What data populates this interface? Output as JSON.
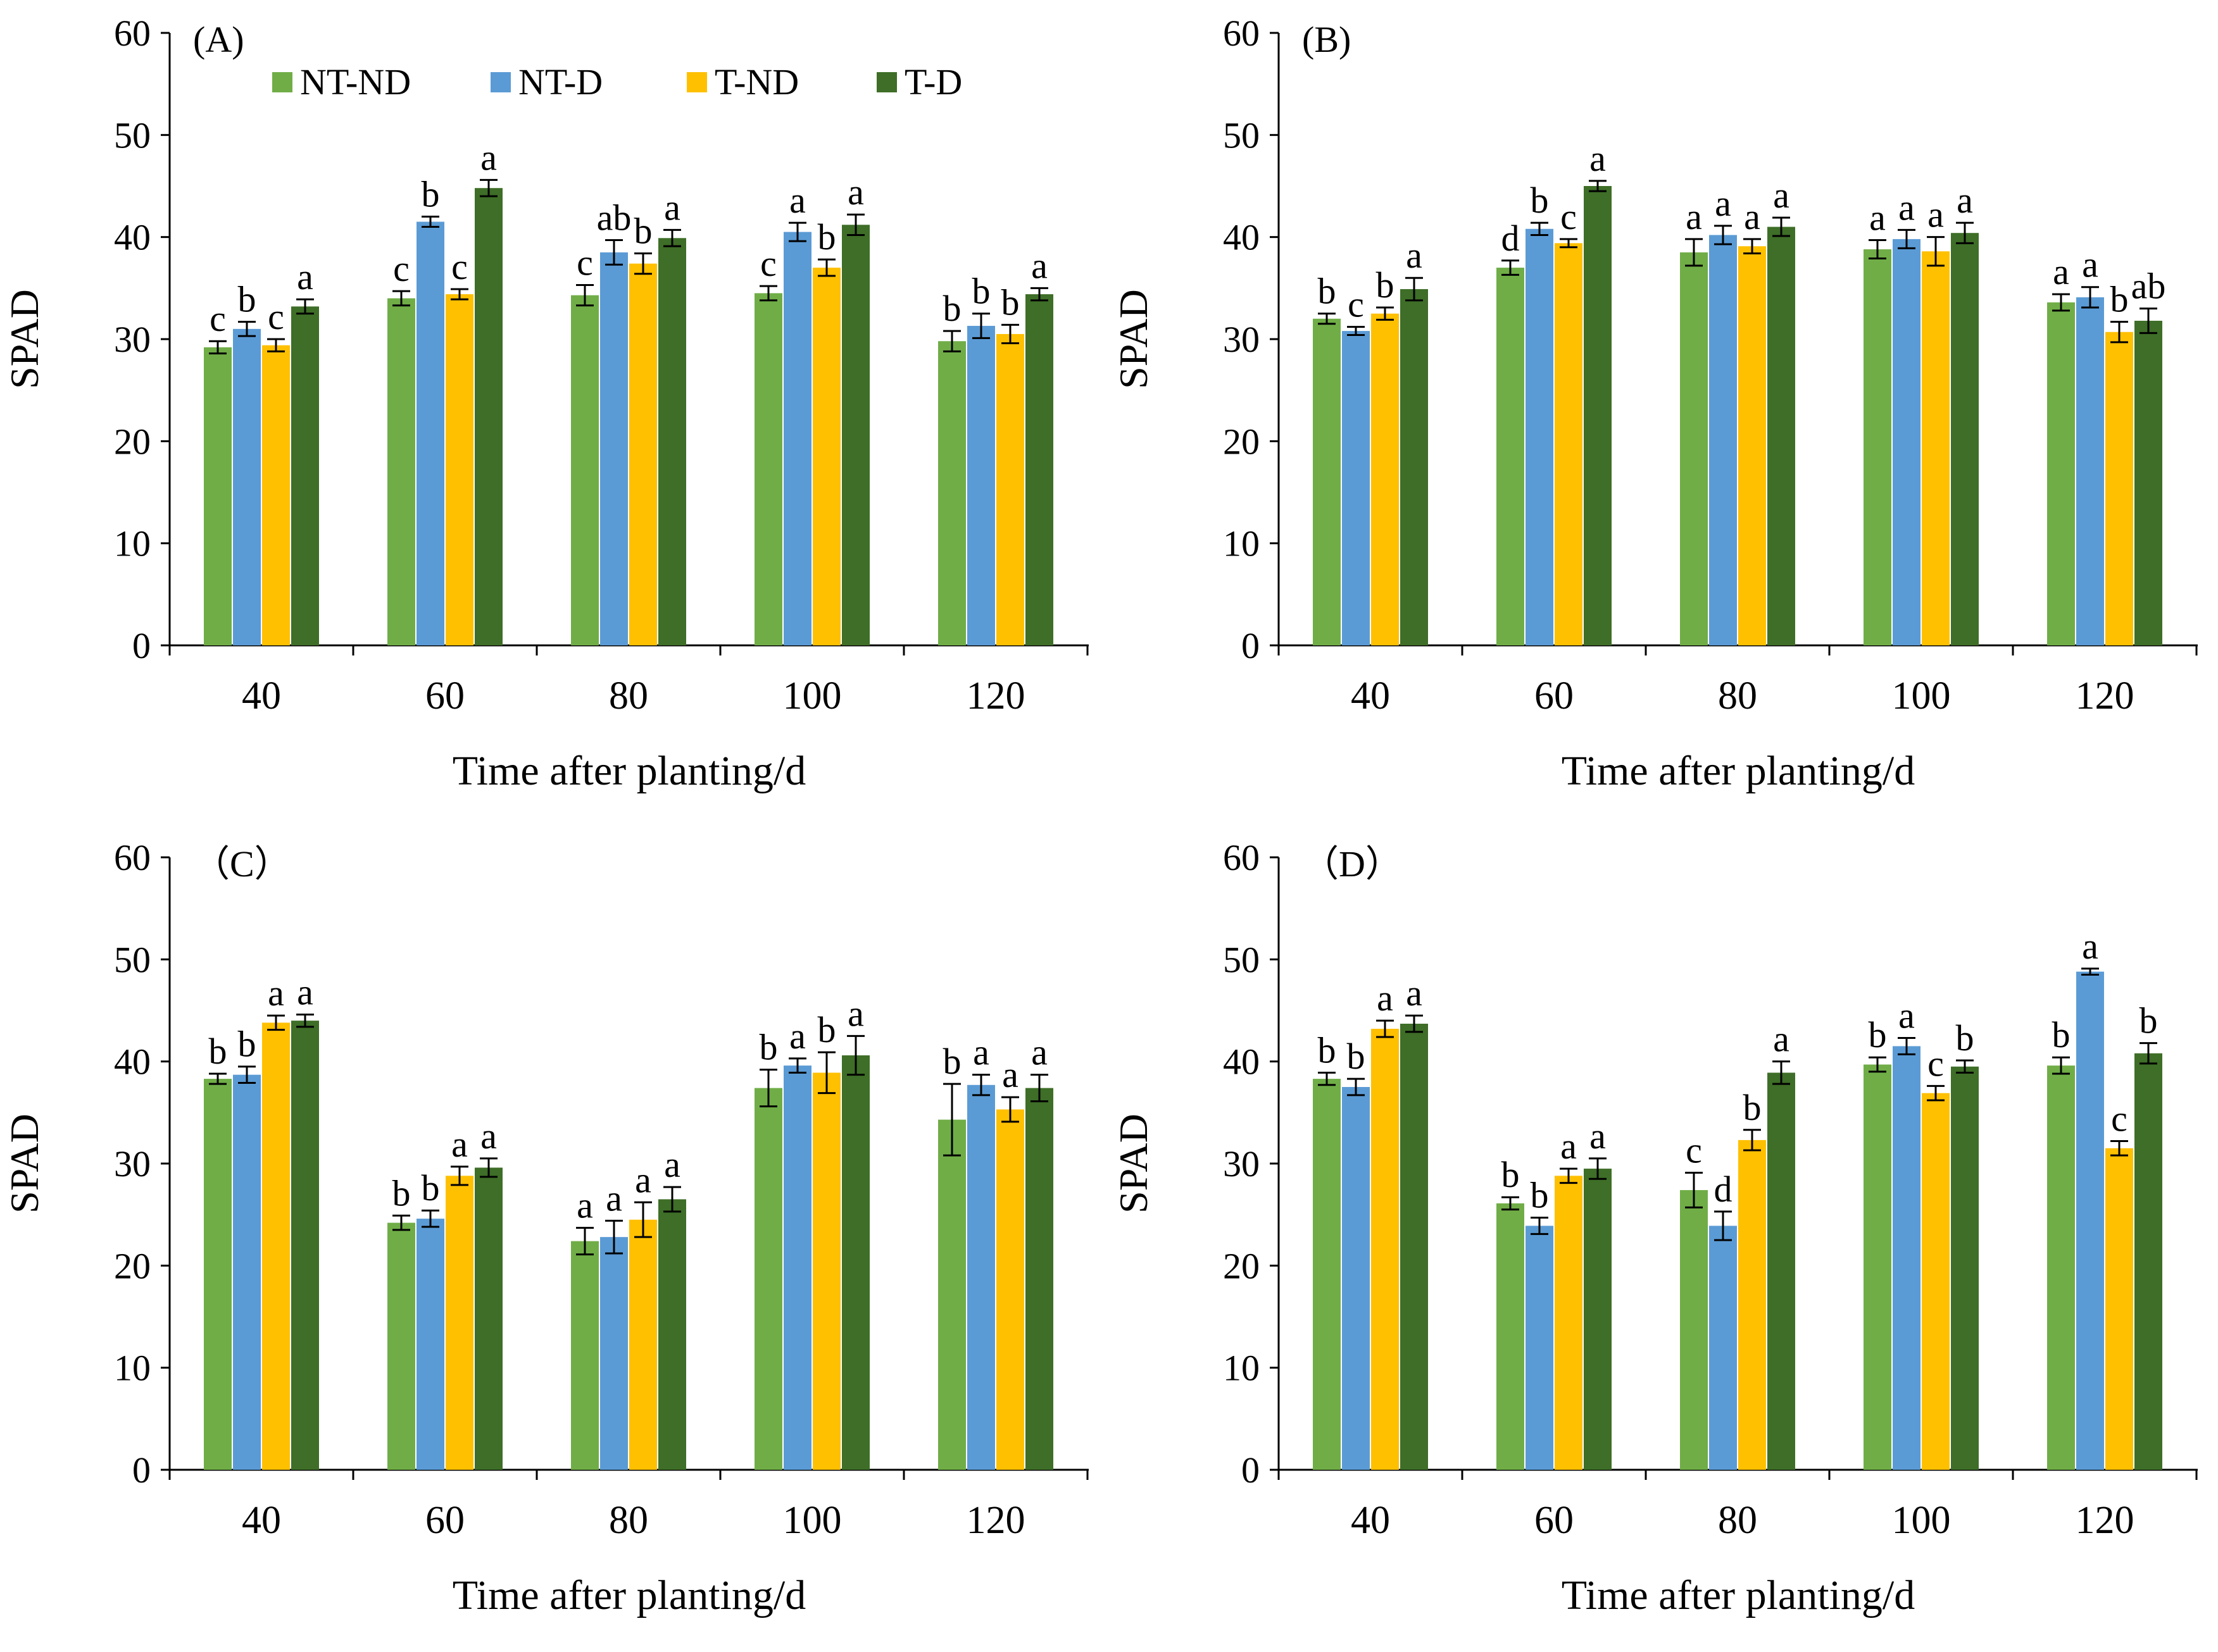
{
  "legend": {
    "items": [
      {
        "label": "NT-ND",
        "color": "#70AD47"
      },
      {
        "label": "NT-D",
        "color": "#5B9BD5"
      },
      {
        "label": "T-ND",
        "color": "#FFC000"
      },
      {
        "label": "T-D",
        "color": "#3E6E27"
      }
    ]
  },
  "chart_data": [
    {
      "type": "bar",
      "panel_label": "(A)",
      "xlabel": "Time after planting/d",
      "ylabel": "SPAD",
      "ylim": [
        0,
        60
      ],
      "yticks": [
        0,
        10,
        20,
        30,
        40,
        50,
        60
      ],
      "categories": [
        "40",
        "60",
        "80",
        "100",
        "120"
      ],
      "series": [
        {
          "name": "NT-ND",
          "values": [
            29.2,
            34.0,
            34.3,
            34.5,
            29.8
          ],
          "errors": [
            0.6,
            0.7,
            1.0,
            0.7,
            1.0
          ],
          "letters": [
            "c",
            "c",
            "c",
            "c",
            "b"
          ]
        },
        {
          "name": "NT-D",
          "values": [
            31.0,
            41.5,
            38.5,
            40.5,
            31.3
          ],
          "errors": [
            0.7,
            0.5,
            1.2,
            0.9,
            1.2
          ],
          "letters": [
            "b",
            "b",
            "ab",
            "a",
            "b"
          ]
        },
        {
          "name": "T-ND",
          "values": [
            29.4,
            34.4,
            37.4,
            37.0,
            30.5
          ],
          "errors": [
            0.6,
            0.5,
            1.0,
            0.8,
            0.9
          ],
          "letters": [
            "c",
            "c",
            "b",
            "b",
            "b"
          ]
        },
        {
          "name": "T-D",
          "values": [
            33.2,
            44.8,
            39.9,
            41.2,
            34.4
          ],
          "errors": [
            0.7,
            0.8,
            0.8,
            1.0,
            0.6
          ],
          "letters": [
            "a",
            "a",
            "a",
            "a",
            "a"
          ]
        }
      ]
    },
    {
      "type": "bar",
      "panel_label": "(B)",
      "xlabel": "Time after planting/d",
      "ylabel": "SPAD",
      "ylim": [
        0,
        60
      ],
      "yticks": [
        0,
        10,
        20,
        30,
        40,
        50,
        60
      ],
      "categories": [
        "40",
        "60",
        "80",
        "100",
        "120"
      ],
      "series": [
        {
          "name": "NT-ND",
          "values": [
            32.0,
            37.0,
            38.5,
            38.8,
            33.6
          ],
          "errors": [
            0.5,
            0.7,
            1.3,
            0.9,
            0.8
          ],
          "letters": [
            "b",
            "d",
            "a",
            "a",
            "a"
          ]
        },
        {
          "name": "NT-D",
          "values": [
            30.8,
            40.8,
            40.2,
            39.8,
            34.1
          ],
          "errors": [
            0.4,
            0.6,
            0.9,
            0.9,
            1.0
          ],
          "letters": [
            "c",
            "b",
            "a",
            "a",
            "a"
          ]
        },
        {
          "name": "T-ND",
          "values": [
            32.5,
            39.4,
            39.1,
            38.6,
            30.7
          ],
          "errors": [
            0.6,
            0.4,
            0.7,
            1.4,
            1.0
          ],
          "letters": [
            "b",
            "c",
            "a",
            "a",
            "b"
          ]
        },
        {
          "name": "T-D",
          "values": [
            34.9,
            45.0,
            41.0,
            40.4,
            31.8
          ],
          "errors": [
            1.1,
            0.5,
            0.9,
            1.0,
            1.2
          ],
          "letters": [
            "a",
            "a",
            "a",
            "a",
            "ab"
          ]
        }
      ]
    },
    {
      "type": "bar",
      "panel_label": "（C）",
      "xlabel": "Time after planting/d",
      "ylabel": "SPAD",
      "ylim": [
        0,
        60
      ],
      "yticks": [
        0,
        10,
        20,
        30,
        40,
        50,
        60
      ],
      "categories": [
        "40",
        "60",
        "80",
        "100",
        "120"
      ],
      "series": [
        {
          "name": "NT-ND",
          "values": [
            38.3,
            24.2,
            22.4,
            37.4,
            34.3
          ],
          "errors": [
            0.5,
            0.7,
            1.3,
            1.8,
            3.5
          ],
          "letters": [
            "b",
            "b",
            "a",
            "b",
            "b"
          ]
        },
        {
          "name": "NT-D",
          "values": [
            38.7,
            24.6,
            22.8,
            39.6,
            37.7
          ],
          "errors": [
            0.8,
            0.8,
            1.6,
            0.7,
            1.0
          ],
          "letters": [
            "b",
            "b",
            "a",
            "a",
            "a"
          ]
        },
        {
          "name": "T-ND",
          "values": [
            43.8,
            28.8,
            24.5,
            38.9,
            35.3
          ],
          "errors": [
            0.7,
            0.9,
            1.7,
            2.0,
            1.2
          ],
          "letters": [
            "a",
            "a",
            "a",
            "b",
            "a"
          ]
        },
        {
          "name": "T-D",
          "values": [
            44.0,
            29.6,
            26.5,
            40.6,
            37.4
          ],
          "errors": [
            0.6,
            0.9,
            1.2,
            1.9,
            1.3
          ],
          "letters": [
            "a",
            "a",
            "a",
            "a",
            "a"
          ]
        }
      ]
    },
    {
      "type": "bar",
      "panel_label": "（D）",
      "xlabel": "Time after planting/d",
      "ylabel": "SPAD",
      "ylim": [
        0,
        60
      ],
      "yticks": [
        0,
        10,
        20,
        30,
        40,
        50,
        60
      ],
      "categories": [
        "40",
        "60",
        "80",
        "100",
        "120"
      ],
      "series": [
        {
          "name": "NT-ND",
          "values": [
            38.3,
            26.1,
            27.4,
            39.7,
            39.6
          ],
          "errors": [
            0.6,
            0.6,
            1.7,
            0.7,
            0.8
          ],
          "letters": [
            "b",
            "b",
            "c",
            "b",
            "b"
          ]
        },
        {
          "name": "NT-D",
          "values": [
            37.5,
            23.9,
            23.9,
            41.5,
            48.8
          ],
          "errors": [
            0.8,
            0.8,
            1.4,
            0.8,
            0.3
          ],
          "letters": [
            "b",
            "b",
            "d",
            "a",
            "a"
          ]
        },
        {
          "name": "T-ND",
          "values": [
            43.2,
            28.8,
            32.3,
            36.9,
            31.5
          ],
          "errors": [
            0.8,
            0.7,
            1.0,
            0.7,
            0.7
          ],
          "letters": [
            "a",
            "a",
            "b",
            "c",
            "c"
          ]
        },
        {
          "name": "T-D",
          "values": [
            43.7,
            29.5,
            38.9,
            39.5,
            40.8
          ],
          "errors": [
            0.8,
            1.0,
            1.1,
            0.6,
            1.0
          ],
          "letters": [
            "a",
            "a",
            "a",
            "b",
            "b"
          ]
        }
      ]
    }
  ]
}
